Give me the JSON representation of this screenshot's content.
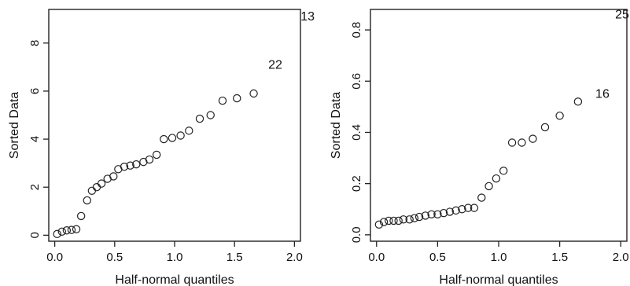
{
  "chart_data": [
    {
      "type": "scatter",
      "xlabel": "Half-normal quantiles",
      "ylabel": "Sorted Data",
      "xlim": [
        -0.05,
        2.05
      ],
      "ylim": [
        -0.25,
        9.4
      ],
      "xticks": [
        0.0,
        0.5,
        1.0,
        1.5,
        2.0
      ],
      "xtick_labels": [
        "0.0",
        "0.5",
        "1.0",
        "1.5",
        "2.0"
      ],
      "yticks": [
        0,
        2,
        4,
        6,
        8
      ],
      "ytick_labels": [
        "0",
        "2",
        "4",
        "6",
        "8"
      ],
      "grid": false,
      "points": [
        {
          "x": 0.02,
          "y": 0.05
        },
        {
          "x": 0.06,
          "y": 0.15
        },
        {
          "x": 0.1,
          "y": 0.2
        },
        {
          "x": 0.14,
          "y": 0.22
        },
        {
          "x": 0.18,
          "y": 0.25
        },
        {
          "x": 0.22,
          "y": 0.8
        },
        {
          "x": 0.27,
          "y": 1.45
        },
        {
          "x": 0.31,
          "y": 1.85
        },
        {
          "x": 0.35,
          "y": 2.0
        },
        {
          "x": 0.39,
          "y": 2.15
        },
        {
          "x": 0.44,
          "y": 2.35
        },
        {
          "x": 0.49,
          "y": 2.45
        },
        {
          "x": 0.53,
          "y": 2.75
        },
        {
          "x": 0.58,
          "y": 2.85
        },
        {
          "x": 0.63,
          "y": 2.9
        },
        {
          "x": 0.68,
          "y": 2.95
        },
        {
          "x": 0.74,
          "y": 3.05
        },
        {
          "x": 0.79,
          "y": 3.15
        },
        {
          "x": 0.85,
          "y": 3.35
        },
        {
          "x": 0.91,
          "y": 4.0
        },
        {
          "x": 0.98,
          "y": 4.05
        },
        {
          "x": 1.05,
          "y": 4.15
        },
        {
          "x": 1.12,
          "y": 4.35
        },
        {
          "x": 1.21,
          "y": 4.85
        },
        {
          "x": 1.3,
          "y": 5.0
        },
        {
          "x": 1.4,
          "y": 5.6
        },
        {
          "x": 1.52,
          "y": 5.7
        },
        {
          "x": 1.66,
          "y": 5.9
        }
      ],
      "labeled_points": [
        {
          "label": "22",
          "x": 1.84,
          "y": 7.1
        },
        {
          "label": "13",
          "x": 2.11,
          "y": 9.1
        }
      ]
    },
    {
      "type": "scatter",
      "xlabel": "Half-normal quantiles",
      "ylabel": "Sorted Data",
      "xlim": [
        -0.05,
        2.05
      ],
      "ylim": [
        -0.025,
        0.88
      ],
      "xticks": [
        0.0,
        0.5,
        1.0,
        1.5,
        2.0
      ],
      "xtick_labels": [
        "0.0",
        "0.5",
        "1.0",
        "1.5",
        "2.0"
      ],
      "yticks": [
        0.0,
        0.2,
        0.4,
        0.6,
        0.8
      ],
      "ytick_labels": [
        "0.0",
        "0.2",
        "0.4",
        "0.6",
        "0.8"
      ],
      "grid": false,
      "points": [
        {
          "x": 0.02,
          "y": 0.04
        },
        {
          "x": 0.06,
          "y": 0.05
        },
        {
          "x": 0.1,
          "y": 0.055
        },
        {
          "x": 0.14,
          "y": 0.055
        },
        {
          "x": 0.18,
          "y": 0.055
        },
        {
          "x": 0.22,
          "y": 0.06
        },
        {
          "x": 0.27,
          "y": 0.06
        },
        {
          "x": 0.31,
          "y": 0.065
        },
        {
          "x": 0.35,
          "y": 0.07
        },
        {
          "x": 0.4,
          "y": 0.075
        },
        {
          "x": 0.45,
          "y": 0.08
        },
        {
          "x": 0.5,
          "y": 0.08
        },
        {
          "x": 0.55,
          "y": 0.085
        },
        {
          "x": 0.6,
          "y": 0.09
        },
        {
          "x": 0.65,
          "y": 0.095
        },
        {
          "x": 0.7,
          "y": 0.1
        },
        {
          "x": 0.75,
          "y": 0.105
        },
        {
          "x": 0.8,
          "y": 0.105
        },
        {
          "x": 0.86,
          "y": 0.145
        },
        {
          "x": 0.92,
          "y": 0.19
        },
        {
          "x": 0.98,
          "y": 0.22
        },
        {
          "x": 1.04,
          "y": 0.25
        },
        {
          "x": 1.11,
          "y": 0.36
        },
        {
          "x": 1.19,
          "y": 0.36
        },
        {
          "x": 1.28,
          "y": 0.375
        },
        {
          "x": 1.38,
          "y": 0.42
        },
        {
          "x": 1.5,
          "y": 0.465
        },
        {
          "x": 1.65,
          "y": 0.52
        }
      ],
      "labeled_points": [
        {
          "label": "16",
          "x": 1.85,
          "y": 0.55
        },
        {
          "label": "25",
          "x": 2.07,
          "y": 0.86
        }
      ]
    }
  ]
}
